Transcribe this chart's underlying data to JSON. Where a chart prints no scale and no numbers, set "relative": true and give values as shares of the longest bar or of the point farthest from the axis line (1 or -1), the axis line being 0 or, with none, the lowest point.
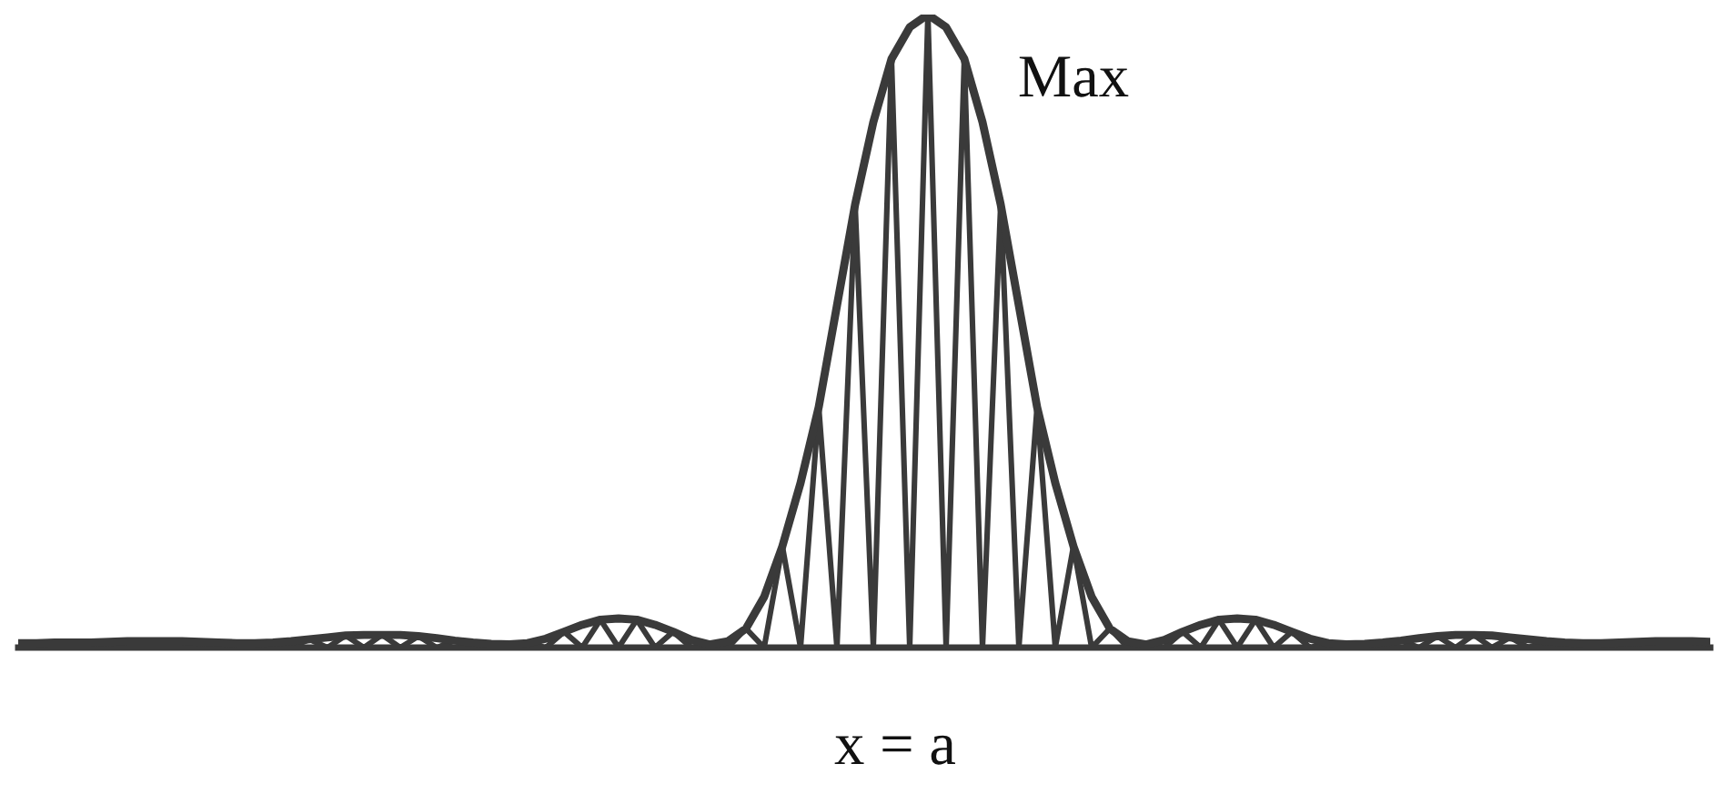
{
  "chart_data": {
    "type": "line",
    "relative": true,
    "categories": [
      null,
      null,
      null,
      null,
      null,
      null,
      null,
      null,
      null,
      null,
      null,
      null,
      null,
      null,
      null,
      null,
      null,
      null,
      null,
      null,
      null,
      null,
      null,
      null,
      null,
      null,
      null,
      null,
      null,
      null,
      null,
      null,
      null,
      null,
      null,
      null,
      null,
      null,
      null,
      null,
      null,
      null,
      null,
      null,
      null,
      null,
      null,
      null,
      null,
      null,
      null,
      null,
      null,
      null,
      null,
      null,
      null,
      null,
      null,
      null,
      null,
      null,
      null,
      null,
      null,
      null,
      null,
      null,
      null,
      null,
      null,
      null,
      null,
      null,
      null,
      null,
      null,
      null,
      null,
      null,
      null,
      null,
      null,
      null,
      null,
      null,
      null,
      null,
      null,
      null,
      null,
      null,
      null,
      null
    ],
    "series": [
      {
        "color": "#3a3a3a",
        "values": [
          0.007,
          0.007,
          0.008,
          0.008,
          0.008,
          0.009,
          0.01,
          0.01,
          0.01,
          0.01,
          0.009,
          0.008,
          0.007,
          0.007,
          0.008,
          0.01,
          0.013,
          0.016,
          0.019,
          0.02,
          0.02,
          0.02,
          0.018,
          0.015,
          0.011,
          0.008,
          0.006,
          0.005,
          0.007,
          0.014,
          0.025,
          0.036,
          0.044,
          0.046,
          0.044,
          0.036,
          0.025,
          0.012,
          0.005,
          0.01,
          0.03,
          0.08,
          0.16,
          0.26,
          0.38,
          0.54,
          0.7,
          0.83,
          0.93,
          0.98,
          1.0,
          0.98,
          0.93,
          0.83,
          0.7,
          0.54,
          0.38,
          0.26,
          0.16,
          0.08,
          0.03,
          0.01,
          0.005,
          0.012,
          0.025,
          0.036,
          0.044,
          0.046,
          0.044,
          0.036,
          0.025,
          0.014,
          0.007,
          0.005,
          0.006,
          0.008,
          0.011,
          0.015,
          0.018,
          0.02,
          0.02,
          0.019,
          0.016,
          0.013,
          0.01,
          0.008,
          0.007,
          0.007,
          0.008,
          0.009,
          0.01,
          0.01,
          0.01,
          0.009
        ]
      },
      {
        "color": "#3a3a3a",
        "values": [
          0.007,
          0,
          0.008,
          0,
          0.008,
          0,
          0.01,
          0,
          0.01,
          0,
          0.009,
          0,
          0.007,
          0,
          0.008,
          0,
          0.013,
          0,
          0.019,
          0,
          0.02,
          0,
          0.018,
          0,
          0.011,
          0,
          0.006,
          0,
          0.007,
          0,
          0.025,
          0,
          0.044,
          0,
          0.044,
          0,
          0.025,
          0,
          0.005,
          0,
          0.03,
          0,
          0.16,
          0,
          0.38,
          0,
          0.7,
          0,
          0.93,
          0,
          1.0,
          0,
          0.93,
          0,
          0.7,
          0,
          0.38,
          0,
          0.16,
          0,
          0.03,
          0,
          0.005,
          0,
          0.025,
          0,
          0.044,
          0,
          0.044,
          0,
          0.025,
          0,
          0.007,
          0,
          0.006,
          0,
          0.011,
          0,
          0.018,
          0,
          0.02,
          0,
          0.016,
          0,
          0.01,
          0,
          0.007,
          0,
          0.008,
          0,
          0.01,
          0,
          0.01,
          0
        ]
      }
    ],
    "annotations": [
      "Max",
      "x = a"
    ]
  }
}
